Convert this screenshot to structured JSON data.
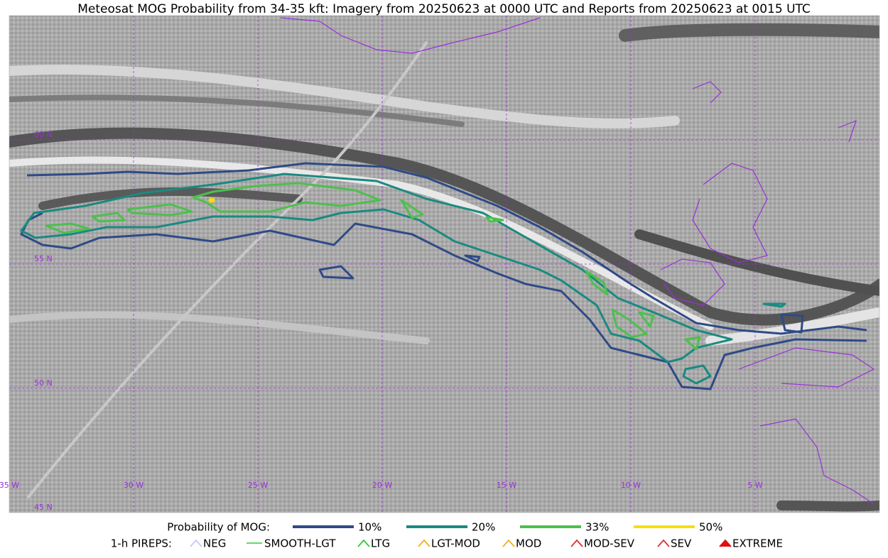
{
  "title": "Meteosat MOG Probability from 34-35 kft: Imagery from 20250623 at 0000 UTC and Reports from 20250623 at 0015 UTC",
  "map": {
    "lat_labels": [
      "60 N",
      "55 N",
      "50 N",
      "45 N"
    ],
    "lon_labels": [
      "35 W",
      "30 W",
      "25 W",
      "20 W",
      "15 W",
      "10 W",
      "5 W"
    ]
  },
  "legend": {
    "probability": {
      "label": "Probability of MOG:",
      "items": [
        "10%",
        "20%",
        "33%",
        "50%"
      ]
    },
    "pireps": {
      "label": "1-h PIREPS:",
      "items": [
        "NEG",
        "SMOOTH-LGT",
        "LTG",
        "LGT-MOD",
        "MOD",
        "MOD-SEV",
        "SEV",
        "EXTREME"
      ]
    }
  }
}
